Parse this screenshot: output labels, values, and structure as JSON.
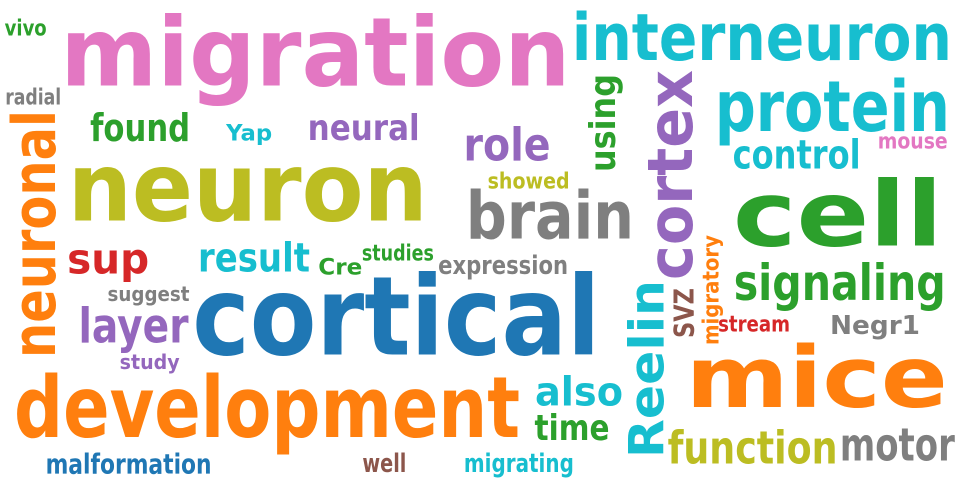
{
  "words": [
    {
      "text": "migration",
      "color": "#e377c2",
      "rotated": false
    },
    {
      "text": "interneuron",
      "color": "#17becf",
      "rotated": false
    },
    {
      "text": "neuron",
      "color": "#bcbd22",
      "rotated": false
    },
    {
      "text": "cortical",
      "color": "#1f77b4",
      "rotated": false
    },
    {
      "text": "development",
      "color": "#ff7f0e",
      "rotated": false
    },
    {
      "text": "mice",
      "color": "#ff7f0e",
      "rotated": false
    },
    {
      "text": "cell",
      "color": "#2ca02c",
      "rotated": false
    },
    {
      "text": "protein",
      "color": "#17becf",
      "rotated": false
    },
    {
      "text": "cortex",
      "color": "#9467bd",
      "rotated": true
    },
    {
      "text": "Reelin",
      "color": "#17becf",
      "rotated": true
    },
    {
      "text": "neuronal",
      "color": "#ff7f0e",
      "rotated": true
    },
    {
      "text": "brain",
      "color": "#7f7f7f",
      "rotated": false
    },
    {
      "text": "function",
      "color": "#bcbd22",
      "rotated": false
    },
    {
      "text": "signaling",
      "color": "#2ca02c",
      "rotated": false
    },
    {
      "text": "motor",
      "color": "#7f7f7f",
      "rotated": false
    },
    {
      "text": "control",
      "color": "#17becf",
      "rotated": false
    },
    {
      "text": "role",
      "color": "#9467bd",
      "rotated": false
    },
    {
      "text": "layer",
      "color": "#9467bd",
      "rotated": false
    },
    {
      "text": "result",
      "color": "#17becf",
      "rotated": false
    },
    {
      "text": "found",
      "color": "#2ca02c",
      "rotated": false
    },
    {
      "text": "neural",
      "color": "#9467bd",
      "rotated": false
    },
    {
      "text": "sup",
      "color": "#d62728",
      "rotated": false
    },
    {
      "text": "also",
      "color": "#17becf",
      "rotated": false
    },
    {
      "text": "time",
      "color": "#2ca02c",
      "rotated": false
    },
    {
      "text": "using",
      "color": "#2ca02c",
      "rotated": true
    },
    {
      "text": "malformation",
      "color": "#1f77b4",
      "rotated": false
    },
    {
      "text": "expression",
      "color": "#7f7f7f",
      "rotated": false
    },
    {
      "text": "migrating",
      "color": "#17becf",
      "rotated": false
    },
    {
      "text": "well",
      "color": "#8c564b",
      "rotated": false
    },
    {
      "text": "Negr1",
      "color": "#7f7f7f",
      "rotated": false
    },
    {
      "text": "stream",
      "color": "#d62728",
      "rotated": false
    },
    {
      "text": "migratory",
      "color": "#ff7f0e",
      "rotated": true
    },
    {
      "text": "SVZ",
      "color": "#8c564b",
      "rotated": true
    },
    {
      "text": "mouse",
      "color": "#e377c2",
      "rotated": false
    },
    {
      "text": "showed",
      "color": "#bcbd22",
      "rotated": false
    },
    {
      "text": "studies",
      "color": "#2ca02c",
      "rotated": false
    },
    {
      "text": "Cre",
      "color": "#2ca02c",
      "rotated": false
    },
    {
      "text": "suggest",
      "color": "#7f7f7f",
      "rotated": false
    },
    {
      "text": "study",
      "color": "#9467bd",
      "rotated": false
    },
    {
      "text": "Yap",
      "color": "#17becf",
      "rotated": false
    },
    {
      "text": "radial",
      "color": "#7f7f7f",
      "rotated": false
    },
    {
      "text": "vivo",
      "color": "#2ca02c",
      "rotated": false
    }
  ]
}
